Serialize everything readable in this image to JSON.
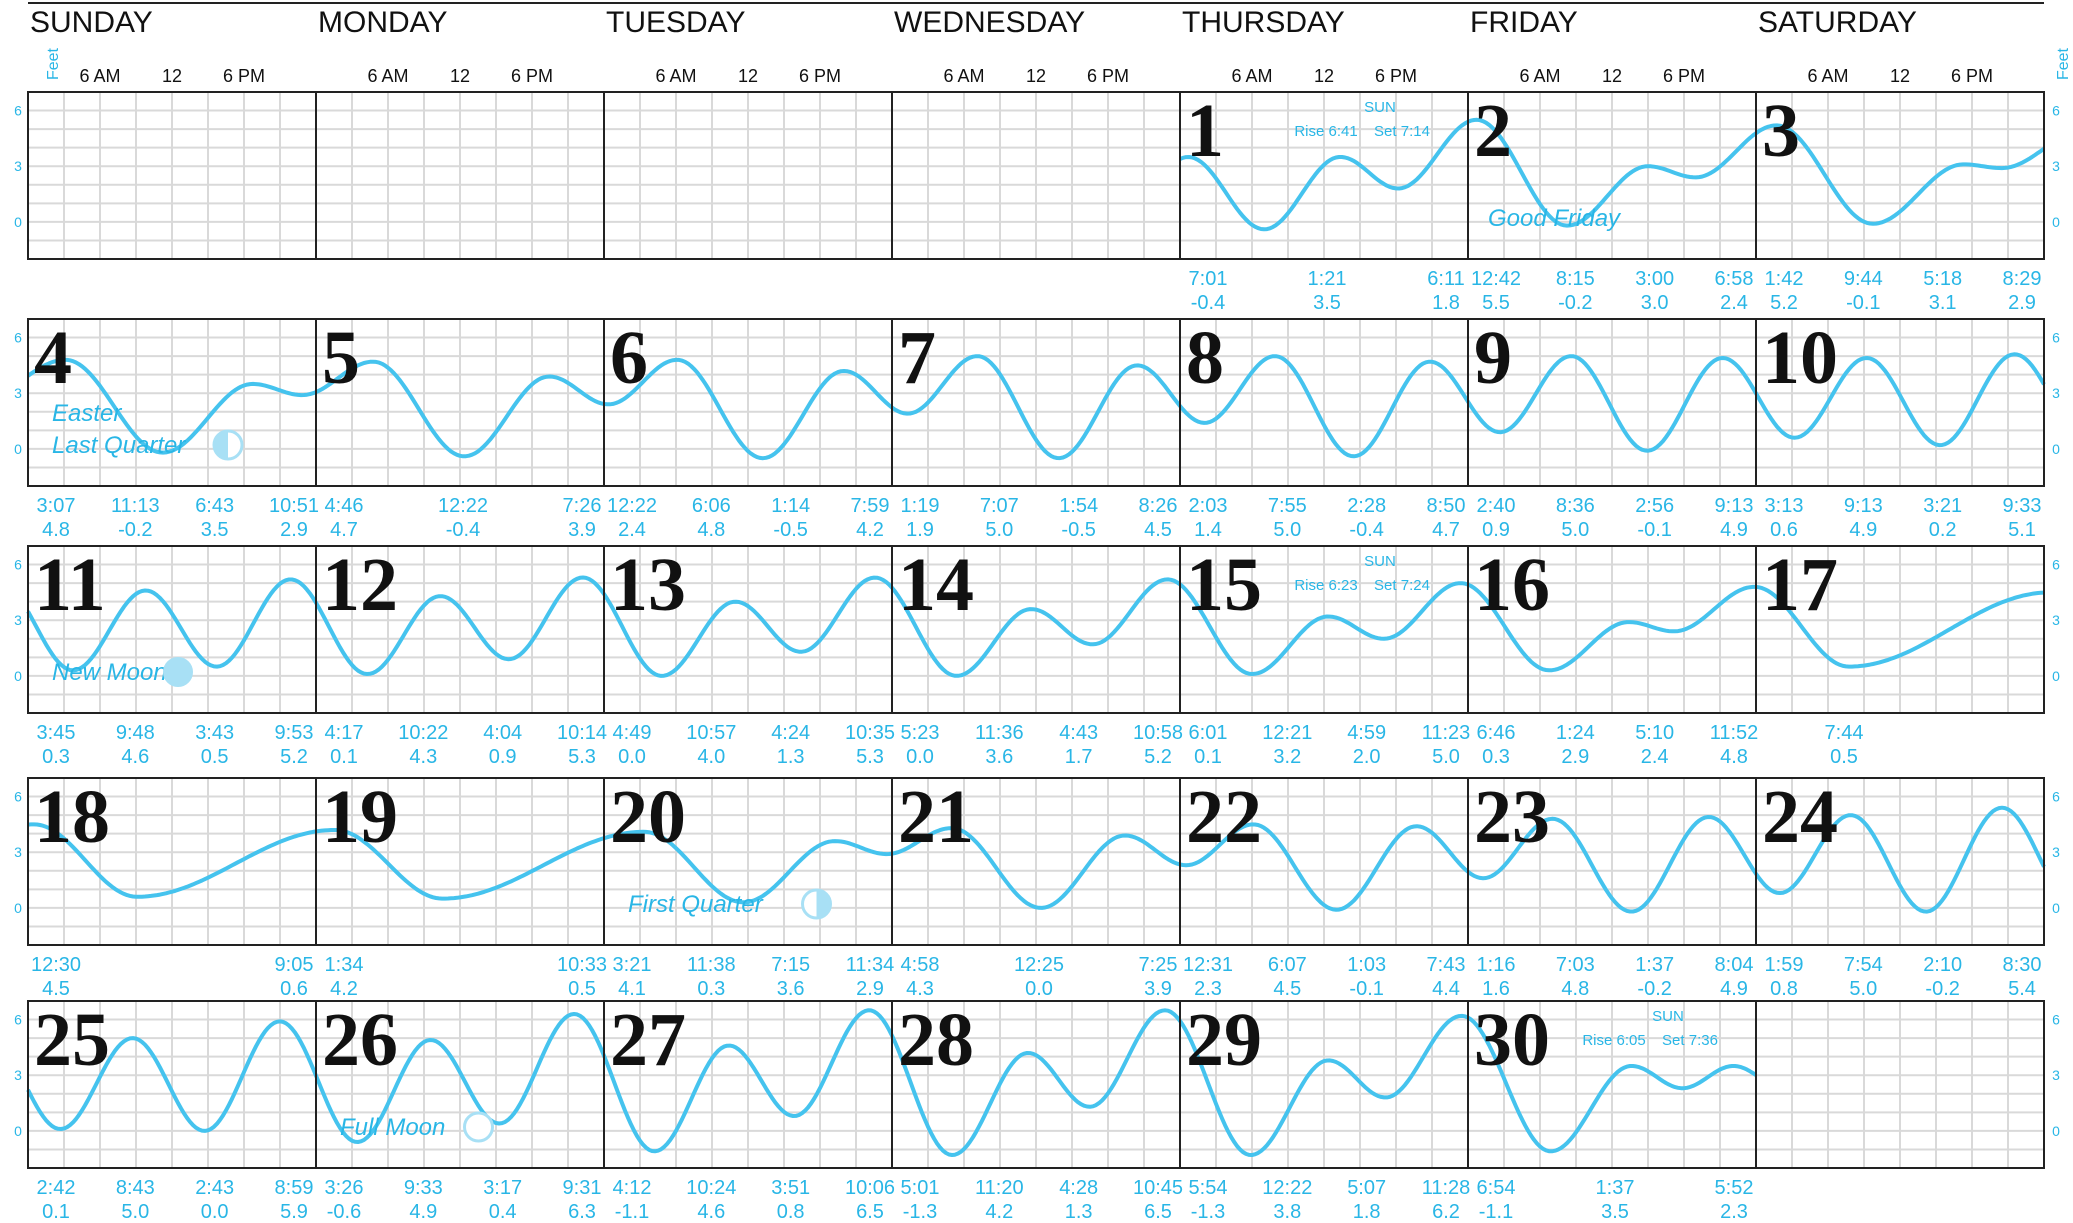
{
  "chart_data": {
    "type": "line",
    "title": "",
    "ylabel": "Feet",
    "yticks": [
      0,
      3,
      6
    ],
    "ylim": [
      -2,
      7
    ],
    "hour_labels": [
      "6 AM",
      "12",
      "6 PM"
    ],
    "weekdays": [
      "SUNDAY",
      "MONDAY",
      "TUESDAY",
      "WEDNESDAY",
      "THURSDAY",
      "FRIDAY",
      "SATURDAY"
    ],
    "colors": {
      "tide": "#45c3ee",
      "text": "#29b6e6",
      "grid": "#d9d9d9",
      "frame": "#222222"
    },
    "first_weekday_index": 4,
    "days": [
      {
        "day": "1",
        "tides": [
          {
            "time": "7:01",
            "height": "-0.4"
          },
          {
            "time": "1:21",
            "height": "3.5"
          },
          {
            "time": "6:11",
            "height": "1.8"
          }
        ]
      },
      {
        "day": "2",
        "tides": [
          {
            "time": "12:42",
            "height": "5.5"
          },
          {
            "time": "8:15",
            "height": "-0.2"
          },
          {
            "time": "3:00",
            "height": "3.0"
          },
          {
            "time": "6:58",
            "height": "2.4"
          }
        ]
      },
      {
        "day": "3",
        "tides": [
          {
            "time": "1:42",
            "height": "5.2"
          },
          {
            "time": "9:44",
            "height": "-0.1"
          },
          {
            "time": "5:18",
            "height": "3.1"
          },
          {
            "time": "8:29",
            "height": "2.9"
          }
        ]
      },
      {
        "day": "4",
        "tides": [
          {
            "time": "3:07",
            "height": "4.8"
          },
          {
            "time": "11:13",
            "height": "-0.2"
          },
          {
            "time": "6:43",
            "height": "3.5"
          },
          {
            "time": "10:51",
            "height": "2.9"
          }
        ]
      },
      {
        "day": "5",
        "tides": [
          {
            "time": "4:46",
            "height": "4.7"
          },
          {
            "time": "12:22",
            "height": "-0.4"
          },
          {
            "time": "7:26",
            "height": "3.9"
          }
        ]
      },
      {
        "day": "6",
        "tides": [
          {
            "time": "12:22",
            "height": "2.4"
          },
          {
            "time": "6:06",
            "height": "4.8"
          },
          {
            "time": "1:14",
            "height": "-0.5"
          },
          {
            "time": "7:59",
            "height": "4.2"
          }
        ]
      },
      {
        "day": "7",
        "tides": [
          {
            "time": "1:19",
            "height": "1.9"
          },
          {
            "time": "7:07",
            "height": "5.0"
          },
          {
            "time": "1:54",
            "height": "-0.5"
          },
          {
            "time": "8:26",
            "height": "4.5"
          }
        ]
      },
      {
        "day": "8",
        "tides": [
          {
            "time": "2:03",
            "height": "1.4"
          },
          {
            "time": "7:55",
            "height": "5.0"
          },
          {
            "time": "2:28",
            "height": "-0.4"
          },
          {
            "time": "8:50",
            "height": "4.7"
          }
        ]
      },
      {
        "day": "9",
        "tides": [
          {
            "time": "2:40",
            "height": "0.9"
          },
          {
            "time": "8:36",
            "height": "5.0"
          },
          {
            "time": "2:56",
            "height": "-0.1"
          },
          {
            "time": "9:13",
            "height": "4.9"
          }
        ]
      },
      {
        "day": "10",
        "tides": [
          {
            "time": "3:13",
            "height": "0.6"
          },
          {
            "time": "9:13",
            "height": "4.9"
          },
          {
            "time": "3:21",
            "height": "0.2"
          },
          {
            "time": "9:33",
            "height": "5.1"
          }
        ]
      },
      {
        "day": "11",
        "tides": [
          {
            "time": "3:45",
            "height": "0.3"
          },
          {
            "time": "9:48",
            "height": "4.6"
          },
          {
            "time": "3:43",
            "height": "0.5"
          },
          {
            "time": "9:53",
            "height": "5.2"
          }
        ]
      },
      {
        "day": "12",
        "tides": [
          {
            "time": "4:17",
            "height": "0.1"
          },
          {
            "time": "10:22",
            "height": "4.3"
          },
          {
            "time": "4:04",
            "height": "0.9"
          },
          {
            "time": "10:14",
            "height": "5.3"
          }
        ]
      },
      {
        "day": "13",
        "tides": [
          {
            "time": "4:49",
            "height": "0.0"
          },
          {
            "time": "10:57",
            "height": "4.0"
          },
          {
            "time": "4:24",
            "height": "1.3"
          },
          {
            "time": "10:35",
            "height": "5.3"
          }
        ]
      },
      {
        "day": "14",
        "tides": [
          {
            "time": "5:23",
            "height": "0.0"
          },
          {
            "time": "11:36",
            "height": "3.6"
          },
          {
            "time": "4:43",
            "height": "1.7"
          },
          {
            "time": "10:58",
            "height": "5.2"
          }
        ]
      },
      {
        "day": "15",
        "tides": [
          {
            "time": "6:01",
            "height": "0.1"
          },
          {
            "time": "12:21",
            "height": "3.2"
          },
          {
            "time": "4:59",
            "height": "2.0"
          },
          {
            "time": "11:23",
            "height": "5.0"
          }
        ]
      },
      {
        "day": "16",
        "tides": [
          {
            "time": "6:46",
            "height": "0.3"
          },
          {
            "time": "1:24",
            "height": "2.9"
          },
          {
            "time": "5:10",
            "height": "2.4"
          },
          {
            "time": "11:52",
            "height": "4.8"
          }
        ]
      },
      {
        "day": "17",
        "tides": [
          {
            "time": "7:44",
            "height": "0.5"
          }
        ]
      },
      {
        "day": "18",
        "tides": [
          {
            "time": "12:30",
            "height": "4.5"
          },
          {
            "time": "9:05",
            "height": "0.6"
          }
        ]
      },
      {
        "day": "19",
        "tides": [
          {
            "time": "1:34",
            "height": "4.2"
          },
          {
            "time": "10:33",
            "height": "0.5"
          }
        ]
      },
      {
        "day": "20",
        "tides": [
          {
            "time": "3:21",
            "height": "4.1"
          },
          {
            "time": "11:38",
            "height": "0.3"
          },
          {
            "time": "7:15",
            "height": "3.6"
          },
          {
            "time": "11:34",
            "height": "2.9"
          }
        ]
      },
      {
        "day": "21",
        "tides": [
          {
            "time": "4:58",
            "height": "4.3"
          },
          {
            "time": "12:25",
            "height": "0.0"
          },
          {
            "time": "7:25",
            "height": "3.9"
          }
        ]
      },
      {
        "day": "22",
        "tides": [
          {
            "time": "12:31",
            "height": "2.3"
          },
          {
            "time": "6:07",
            "height": "4.5"
          },
          {
            "time": "1:03",
            "height": "-0.1"
          },
          {
            "time": "7:43",
            "height": "4.4"
          }
        ]
      },
      {
        "day": "23",
        "tides": [
          {
            "time": "1:16",
            "height": "1.6"
          },
          {
            "time": "7:03",
            "height": "4.8"
          },
          {
            "time": "1:37",
            "height": "-0.2"
          },
          {
            "time": "8:04",
            "height": "4.9"
          }
        ]
      },
      {
        "day": "24",
        "tides": [
          {
            "time": "1:59",
            "height": "0.8"
          },
          {
            "time": "7:54",
            "height": "5.0"
          },
          {
            "time": "2:10",
            "height": "-0.2"
          },
          {
            "time": "8:30",
            "height": "5.4"
          }
        ]
      },
      {
        "day": "25",
        "tides": [
          {
            "time": "2:42",
            "height": "0.1"
          },
          {
            "time": "8:43",
            "height": "5.0"
          },
          {
            "time": "2:43",
            "height": "0.0"
          },
          {
            "time": "8:59",
            "height": "5.9"
          }
        ]
      },
      {
        "day": "26",
        "tides": [
          {
            "time": "3:26",
            "height": "-0.6"
          },
          {
            "time": "9:33",
            "height": "4.9"
          },
          {
            "time": "3:17",
            "height": "0.4"
          },
          {
            "time": "9:31",
            "height": "6.3"
          }
        ]
      },
      {
        "day": "27",
        "tides": [
          {
            "time": "4:12",
            "height": "-1.1"
          },
          {
            "time": "10:24",
            "height": "4.6"
          },
          {
            "time": "3:51",
            "height": "0.8"
          },
          {
            "time": "10:06",
            "height": "6.5"
          }
        ]
      },
      {
        "day": "28",
        "tides": [
          {
            "time": "5:01",
            "height": "-1.3"
          },
          {
            "time": "11:20",
            "height": "4.2"
          },
          {
            "time": "4:28",
            "height": "1.3"
          },
          {
            "time": "10:45",
            "height": "6.5"
          }
        ]
      },
      {
        "day": "29",
        "tides": [
          {
            "time": "5:54",
            "height": "-1.3"
          },
          {
            "time": "12:22",
            "height": "3.8"
          },
          {
            "time": "5:07",
            "height": "1.8"
          },
          {
            "time": "11:28",
            "height": "6.2"
          }
        ]
      },
      {
        "day": "30",
        "tides": [
          {
            "time": "6:54",
            "height": "-1.1"
          },
          {
            "time": "1:37",
            "height": "3.5"
          },
          {
            "time": "5:52",
            "height": "2.3"
          }
        ]
      }
    ],
    "annotations": [
      {
        "day": "2",
        "text": "Good Friday"
      },
      {
        "day": "4",
        "text": "Easter"
      },
      {
        "day": "4",
        "text": "Last Quarter",
        "phase": "last"
      },
      {
        "day": "11",
        "text": "New Moon",
        "phase": "new"
      },
      {
        "day": "20",
        "text": "First Quarter",
        "phase": "first"
      },
      {
        "day": "26",
        "text": "Full Moon",
        "phase": "full"
      }
    ],
    "sun": [
      {
        "day": "1",
        "label": "SUN",
        "rise": "Rise 6:41",
        "set": "Set 7:14"
      },
      {
        "day": "15",
        "label": "SUN",
        "rise": "Rise 6:23",
        "set": "Set 7:24"
      },
      {
        "day": "30",
        "label": "SUN",
        "rise": "Rise 6:05",
        "set": "Set 7:36"
      }
    ]
  }
}
